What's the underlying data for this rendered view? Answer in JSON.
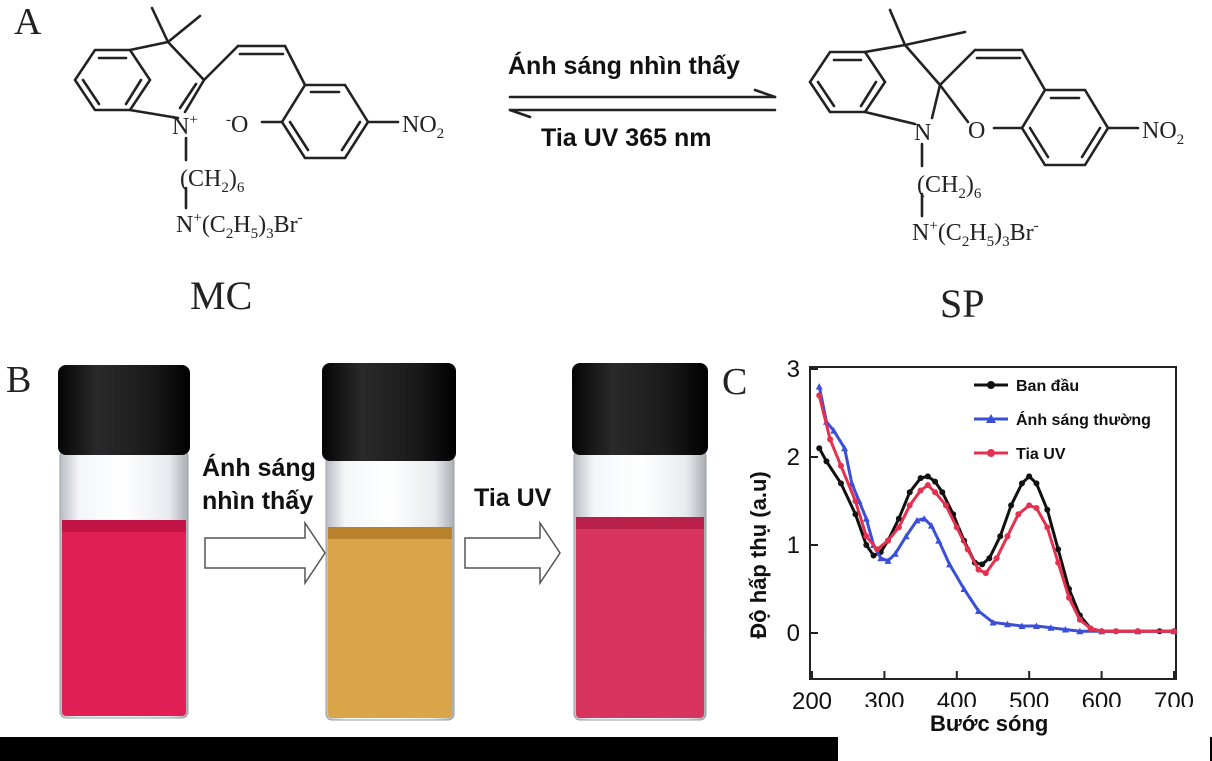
{
  "panels": {
    "a": "A",
    "b": "B",
    "c": "C"
  },
  "scheme": {
    "mc_label": "MC",
    "sp_label": "SP",
    "forward_label": "Ánh sáng nhìn thấy",
    "reverse_label": "Tia UV 365 nm",
    "mc_chain": "(CH2)6",
    "mc_amine": "N+(C2H5)3Br-",
    "sp_chain": "(CH2)6",
    "sp_amine": "N+(C2H5)3Br-",
    "nitro": "NO2"
  },
  "vials": {
    "arrow1_label_line1": "Ánh sáng",
    "arrow1_label_line2": "nhìn thấy",
    "arrow2_label": "Tia UV",
    "colors": {
      "vial1": "#e01f55",
      "vial2": "#d9a548",
      "vial3": "#d7345f"
    }
  },
  "chart_data": {
    "type": "line",
    "title": "",
    "xlabel": "Bước sóng",
    "ylabel": "Độ hấp thụ (a.u)",
    "xlim": [
      200,
      700
    ],
    "ylim": [
      -0.5,
      3
    ],
    "xticks": [
      200,
      300,
      400,
      500,
      600,
      700
    ],
    "yticks": [
      0,
      1,
      2,
      3
    ],
    "legend_position": "top-right",
    "series": [
      {
        "name": "Ban đầu",
        "color": "#111111",
        "marker": "circle",
        "x": [
          210,
          220,
          240,
          260,
          275,
          285,
          295,
          305,
          320,
          335,
          350,
          360,
          370,
          380,
          395,
          410,
          425,
          435,
          445,
          460,
          475,
          490,
          500,
          510,
          525,
          540,
          555,
          570,
          585,
          600,
          620,
          650,
          680,
          700
        ],
        "y": [
          2.1,
          1.95,
          1.7,
          1.35,
          1.0,
          0.88,
          0.92,
          1.05,
          1.3,
          1.6,
          1.76,
          1.78,
          1.72,
          1.6,
          1.35,
          1.05,
          0.8,
          0.78,
          0.85,
          1.1,
          1.45,
          1.7,
          1.78,
          1.7,
          1.4,
          0.95,
          0.5,
          0.2,
          0.05,
          0.02,
          0.02,
          0.02,
          0.02,
          0.02
        ]
      },
      {
        "name": "Ánh sáng thường",
        "color": "#3a4fd8",
        "marker": "triangle",
        "x": [
          210,
          220,
          230,
          245,
          255,
          265,
          275,
          285,
          295,
          305,
          315,
          330,
          345,
          355,
          365,
          375,
          390,
          410,
          430,
          450,
          470,
          490,
          510,
          530,
          550,
          570,
          600,
          650,
          700
        ],
        "y": [
          2.8,
          2.4,
          2.3,
          2.1,
          1.7,
          1.5,
          1.3,
          1.0,
          0.85,
          0.82,
          0.9,
          1.1,
          1.28,
          1.3,
          1.22,
          1.05,
          0.78,
          0.5,
          0.25,
          0.12,
          0.1,
          0.08,
          0.08,
          0.06,
          0.04,
          0.02,
          0.02,
          0.02,
          0.02
        ]
      },
      {
        "name": "Tia UV",
        "color": "#e6304f",
        "marker": "circle",
        "x": [
          210,
          225,
          240,
          260,
          275,
          290,
          305,
          320,
          335,
          350,
          360,
          370,
          385,
          400,
          415,
          430,
          440,
          455,
          470,
          485,
          500,
          510,
          525,
          540,
          555,
          570,
          585,
          600,
          620,
          650,
          700
        ],
        "y": [
          2.7,
          2.2,
          1.9,
          1.5,
          1.1,
          0.95,
          1.05,
          1.2,
          1.45,
          1.62,
          1.68,
          1.6,
          1.45,
          1.2,
          0.95,
          0.72,
          0.68,
          0.85,
          1.1,
          1.35,
          1.45,
          1.42,
          1.2,
          0.8,
          0.4,
          0.15,
          0.05,
          0.02,
          0.02,
          0.02,
          0.02
        ]
      }
    ]
  }
}
